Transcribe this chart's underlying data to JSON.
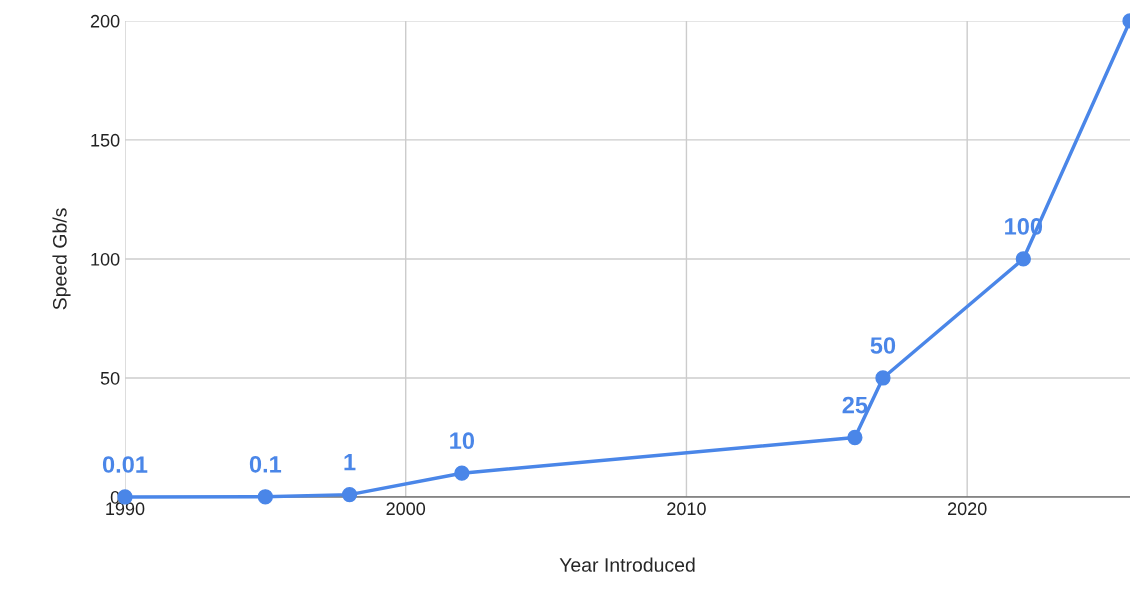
{
  "chart_data": {
    "type": "line",
    "xlabel": "Year Introduced",
    "ylabel": "Speed Gb/s",
    "x": [
      1990,
      1995,
      1998,
      2002,
      2016,
      2017,
      2022,
      2025.8
    ],
    "series": [
      {
        "color": "#4a86e8",
        "values": [
          0.01,
          0.1,
          1,
          10,
          25,
          50,
          100,
          200
        ],
        "value_labels": [
          "0.01",
          "0.1",
          "1",
          "10",
          "25",
          "50",
          "100",
          null
        ]
      }
    ],
    "xlim": [
      1990,
      2025.8
    ],
    "xticks": [
      1990,
      2000,
      2010,
      2020
    ],
    "ylim": [
      0,
      200
    ],
    "yticks": [
      0,
      50,
      100,
      150,
      200
    ],
    "grid": true,
    "marker": "circle",
    "line_style": "solid"
  }
}
